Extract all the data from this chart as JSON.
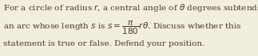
{
  "background_color": "#f2eedf",
  "text_color": "#4a3728",
  "fontsize": 7.5,
  "figsize": [
    3.23,
    0.71
  ],
  "dpi": 100,
  "line1": "For a circle of radius $r$, a central angle of $\\theta$ degrees subtends",
  "line2": "an arc whose length $s$ is $s = \\dfrac{\\pi}{180}r\\theta$. Discuss whether this",
  "line3": "statement is true or false. Defend your position."
}
